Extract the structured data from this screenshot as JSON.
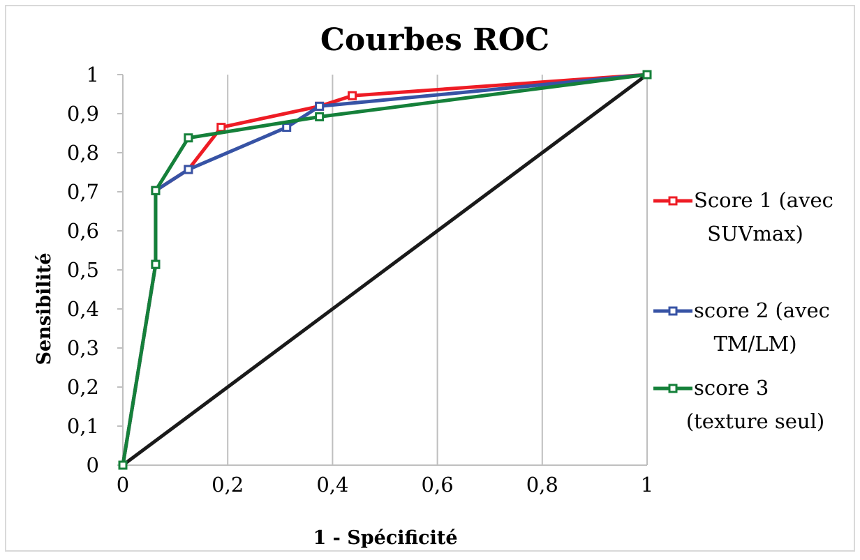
{
  "chart_data": {
    "type": "line",
    "title": "Courbes ROC",
    "xlabel": "1 - Spécificité",
    "ylabel": "Sensibilité",
    "xlim": [
      0,
      1
    ],
    "ylim": [
      0,
      1
    ],
    "x_ticks": [
      "0",
      "0,2",
      "0,4",
      "0,6",
      "0,8",
      "1"
    ],
    "y_ticks": [
      "0",
      "0,1",
      "0,2",
      "0,3",
      "0,4",
      "0,5",
      "0,6",
      "0,7",
      "0,8",
      "0,9",
      "1"
    ],
    "grid": "vertical",
    "legend_position": "right",
    "series": [
      {
        "name": "Score 1 (avec SUVmax)",
        "legend_lines": [
          "Score 1 (avec",
          "SUVmax)"
        ],
        "color": "#ee1c25",
        "x": [
          0,
          0.0625,
          0.0625,
          0.125,
          0.1875,
          0.375,
          0.4375,
          1
        ],
        "y": [
          0,
          0.514,
          0.703,
          0.757,
          0.865,
          0.919,
          0.946,
          1
        ]
      },
      {
        "name": "score 2 (avec TM/LM)",
        "legend_lines": [
          "score 2 (avec",
          "TM/LM)"
        ],
        "color": "#3753a5",
        "x": [
          0,
          0.0625,
          0.0625,
          0.125,
          0.3125,
          0.375,
          1
        ],
        "y": [
          0,
          0.514,
          0.703,
          0.757,
          0.865,
          0.919,
          1
        ]
      },
      {
        "name": "score 3 (texture seul)",
        "legend_lines": [
          "score 3",
          "(texture seul)"
        ],
        "color": "#15803a",
        "x": [
          0,
          0.0625,
          0.0625,
          0.125,
          0.375,
          1
        ],
        "y": [
          0,
          0.514,
          0.703,
          0.838,
          0.892,
          1
        ]
      }
    ],
    "reference_line": {
      "x": [
        0,
        1
      ],
      "y": [
        0,
        1
      ],
      "color": "#1a1a1a"
    }
  }
}
